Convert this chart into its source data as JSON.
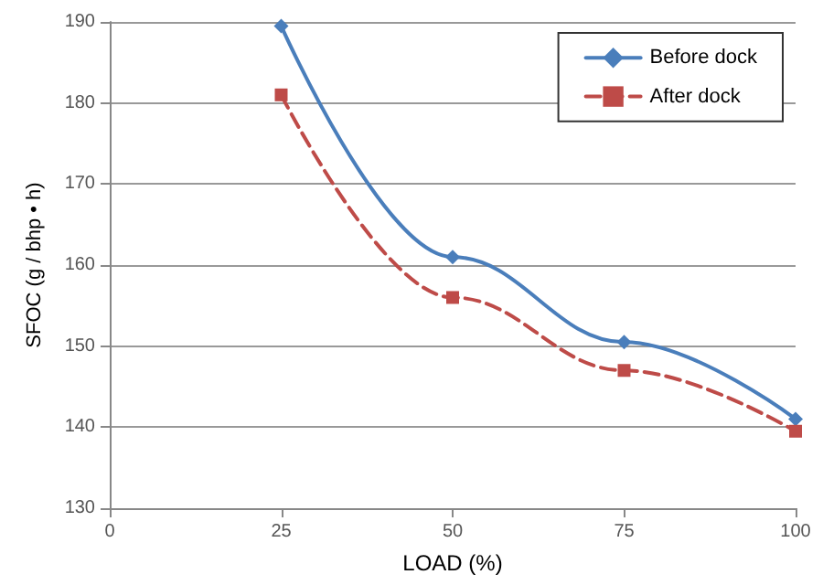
{
  "chart_data": {
    "type": "line",
    "xlabel": "LOAD (%)",
    "ylabel": "SFOC (g / bhp • h)",
    "x": [
      25,
      50,
      75,
      100
    ],
    "series": [
      {
        "name": "Before dock",
        "color": "#4a7ebb",
        "values": [
          189.5,
          161,
          150.5,
          141
        ],
        "marker": "diamond",
        "line_style": "solid"
      },
      {
        "name": "After dock",
        "color": "#be4b48",
        "values": [
          181,
          156,
          147,
          139.5
        ],
        "marker": "square",
        "line_style": "dashed"
      }
    ],
    "xlim": [
      0,
      100
    ],
    "xticks": [
      0,
      25,
      50,
      75,
      100
    ],
    "ylim": [
      130,
      190
    ],
    "yticks": [
      130,
      140,
      150,
      160,
      170,
      180,
      190
    ],
    "grid": "y",
    "legend": "top right"
  }
}
